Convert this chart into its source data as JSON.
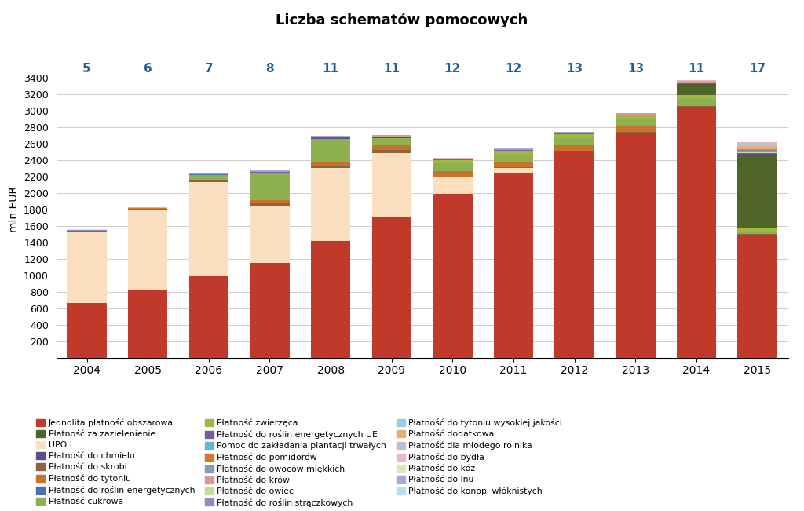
{
  "title": "Liczba schematów pomocowych",
  "ylabel": "mln EUR",
  "years": [
    2004,
    2005,
    2006,
    2007,
    2008,
    2009,
    2010,
    2011,
    2012,
    2013,
    2014,
    2015
  ],
  "schema_counts": [
    "5",
    "6",
    "7",
    "8",
    "11",
    "11",
    "12",
    "12",
    "13",
    "13",
    "11",
    "17"
  ],
  "ylim": [
    0,
    3600
  ],
  "yticks": [
    0,
    200,
    400,
    600,
    800,
    1000,
    1200,
    1400,
    1600,
    1800,
    2000,
    2200,
    2400,
    2600,
    2800,
    3000,
    3200,
    3400
  ],
  "series_order": [
    "Jednolita płatność obszarowa",
    "UPO I",
    "Płatność do skrobi",
    "Płatność do tytoniu",
    "Płatność cukrowa",
    "Płatność zwierzęca",
    "Płatność za zazielenienie",
    "Płatność do chmielu",
    "Płatność do roślin energetycznych",
    "Płatność do roślin energetycznych UE",
    "Pomoc do zakładania plantacji trwałych",
    "Płatność do pomidorów",
    "Płatność do owoców miękkich",
    "Płatność do krów",
    "Płatność do owiec",
    "Płatność do roślin strączkowych",
    "Płatność do tytoniu wysokiej jakości",
    "Płatność dodatkowa",
    "Płatność dla młodego rolnika",
    "Płatność do bydła",
    "Płatność do kóz",
    "Płatność do lnu",
    "Płatność do konopi włóknistych"
  ],
  "series": {
    "Jednolita płatność obszarowa": {
      "color": "#c0392b",
      "values": [
        660,
        820,
        1000,
        1150,
        1420,
        1700,
        1990,
        2250,
        2500,
        2730,
        3050,
        1490
      ]
    },
    "UPO I": {
      "color": "#f9dfc0",
      "values": [
        860,
        970,
        1130,
        700,
        880,
        790,
        200,
        50,
        0,
        0,
        0,
        0
      ]
    },
    "Płatność do skrobi": {
      "color": "#8b6340",
      "values": [
        10,
        10,
        30,
        30,
        30,
        30,
        10,
        10,
        10,
        10,
        10,
        10
      ]
    },
    "Płatność do tytoniu": {
      "color": "#c8732a",
      "values": [
        0,
        0,
        0,
        30,
        50,
        60,
        70,
        70,
        70,
        70,
        0,
        0
      ]
    },
    "Płatność cukrowa": {
      "color": "#8db050",
      "values": [
        0,
        0,
        60,
        330,
        280,
        90,
        90,
        90,
        90,
        90,
        90,
        30
      ]
    },
    "Płatność zwierzęca": {
      "color": "#a0b840",
      "values": [
        0,
        0,
        0,
        0,
        0,
        0,
        40,
        40,
        40,
        40,
        40,
        40
      ]
    },
    "Płatność za zazielenienie": {
      "color": "#4e6428",
      "values": [
        0,
        0,
        0,
        0,
        0,
        0,
        0,
        0,
        0,
        0,
        130,
        900
      ]
    },
    "Płatność do chmielu": {
      "color": "#5c4d8a",
      "values": [
        3,
        3,
        3,
        3,
        3,
        3,
        3,
        3,
        3,
        3,
        3,
        3
      ]
    },
    "Płatność do roślin energetycznych": {
      "color": "#4a72b0",
      "values": [
        5,
        5,
        5,
        8,
        8,
        8,
        5,
        5,
        5,
        5,
        5,
        5
      ]
    },
    "Płatność do roślin energetycznych UE": {
      "color": "#7060a0",
      "values": [
        3,
        3,
        3,
        3,
        3,
        3,
        3,
        3,
        3,
        3,
        3,
        3
      ]
    },
    "Pomoc do zakładania plantacji trwałych": {
      "color": "#60b8c8",
      "values": [
        2,
        2,
        2,
        2,
        2,
        2,
        2,
        2,
        2,
        2,
        2,
        2
      ]
    },
    "Płatność do pomidorów": {
      "color": "#d87828",
      "values": [
        2,
        2,
        2,
        2,
        2,
        2,
        2,
        2,
        2,
        2,
        2,
        2
      ]
    },
    "Płatność do owoców miękkich": {
      "color": "#8898c0",
      "values": [
        2,
        2,
        2,
        2,
        2,
        2,
        2,
        2,
        2,
        2,
        2,
        2
      ]
    },
    "Płatność do krów": {
      "color": "#d89898",
      "values": [
        2,
        2,
        2,
        2,
        2,
        2,
        2,
        2,
        2,
        2,
        2,
        2
      ]
    },
    "Płatność do owiec": {
      "color": "#c8d898",
      "values": [
        2,
        2,
        2,
        2,
        2,
        2,
        2,
        2,
        2,
        2,
        2,
        2
      ]
    },
    "Płatność do roślin strączkowych": {
      "color": "#9888b8",
      "values": [
        0,
        0,
        0,
        0,
        0,
        0,
        0,
        0,
        0,
        0,
        8,
        40
      ]
    },
    "Płatność do tytoniu wysokiej jakości": {
      "color": "#98d0e0",
      "values": [
        2,
        2,
        2,
        2,
        2,
        2,
        2,
        2,
        2,
        2,
        2,
        2
      ]
    },
    "Płatność dodatkowa": {
      "color": "#e8b070",
      "values": [
        0,
        0,
        0,
        0,
        0,
        0,
        0,
        0,
        0,
        0,
        8,
        40
      ]
    },
    "Płatność dla młodego rolnika": {
      "color": "#b8c0d8",
      "values": [
        0,
        0,
        0,
        0,
        0,
        0,
        0,
        0,
        0,
        0,
        8,
        40
      ]
    },
    "Płatność do bydła": {
      "color": "#e8b8c8",
      "values": [
        2,
        2,
        2,
        2,
        2,
        2,
        2,
        2,
        2,
        2,
        2,
        2
      ]
    },
    "Płatność do kóz": {
      "color": "#d8e8b8",
      "values": [
        2,
        2,
        2,
        2,
        2,
        2,
        2,
        2,
        2,
        2,
        2,
        2
      ]
    },
    "Płatność do lnu": {
      "color": "#a8a8d0",
      "values": [
        2,
        2,
        2,
        2,
        2,
        2,
        2,
        2,
        2,
        2,
        2,
        2
      ]
    },
    "Płatność do konopi włóknistych": {
      "color": "#b8e0e8",
      "values": [
        2,
        2,
        2,
        2,
        2,
        2,
        2,
        2,
        2,
        2,
        2,
        2
      ]
    }
  },
  "legend_col1": [
    "Jednolita płatność obszarowa",
    "Płatność do chmielu",
    "Płatność do roślin energetycznych",
    "Płatność do roślin energetycznych UE",
    "Płatność do owoców miękkich",
    "Płatność do roślin strączkowych",
    "Płatność dla młodego rolnika",
    "Płatność do lnu"
  ],
  "legend_col2": [
    "Płatność za zazielenienie",
    "Płatność do skrobi",
    "Płatność cukrowa",
    "Pomoc do zakładania plantacji trwałych",
    "Płatność do krów",
    "Płatność do tytoniu wysokiej jakości",
    "Płatność do bydła",
    "Płatność do konopi włóknistych"
  ],
  "legend_col3": [
    "UPO I",
    "Płatność do tytoniu",
    "Płatność zwierzęca",
    "Płatność do pomidorów",
    "Płatność do owiec",
    "Płatność dodatkowa",
    "Płatność do kóz"
  ],
  "background_color": "#ffffff",
  "grid_color": "#cccccc",
  "schema_label_color": "#2060a0",
  "bar_width": 0.65
}
